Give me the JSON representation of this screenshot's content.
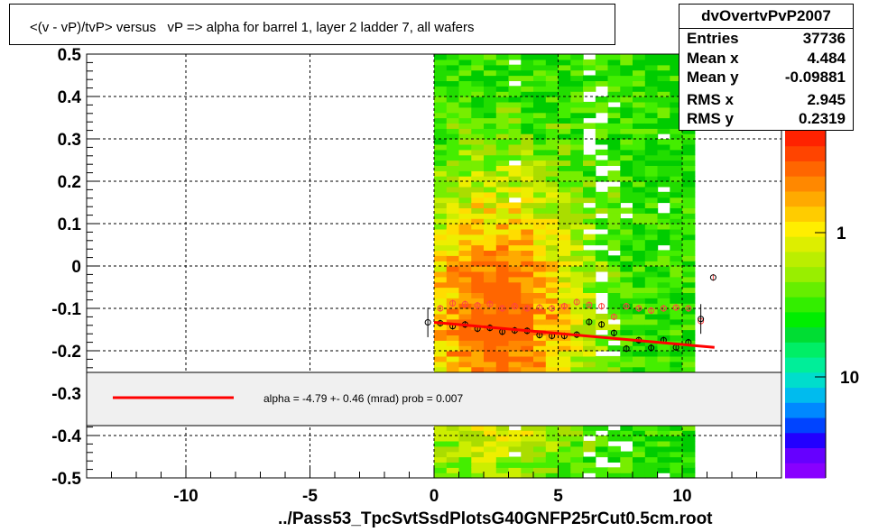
{
  "title": "<(v - vP)/tvP> versus   vP => alpha for barrel 1, layer 2 ladder 7, all wafers",
  "stats": {
    "name": "dvOvertvPvP2007",
    "rows": [
      {
        "label": "Entries",
        "value": "37736"
      },
      {
        "label": "Mean x",
        "value": "4.484"
      },
      {
        "label": "Mean y",
        "value": "-0.09881"
      },
      {
        "label": "RMS x",
        "value": "2.945"
      },
      {
        "label": "RMS y",
        "value": "0.2319"
      }
    ]
  },
  "legend": {
    "text": "alpha =   -4.79 +-  0.46 (mrad) prob = 0.007",
    "line_color": "#ff0000"
  },
  "chart_data": {
    "type": "heatmap",
    "title": "<(v - vP)/tvP> versus   vP => alpha for barrel 1, layer 2 ladder 7, all wafers",
    "xlabel": "../Pass53_TpcSvtSsdPlotsG40GNFP25rCut0.5cm.root",
    "ylabel": "",
    "xlim": [
      -14,
      14
    ],
    "ylim": [
      -0.5,
      0.5
    ],
    "x_ticks": [
      "-10",
      "-5",
      "0",
      "5",
      "10"
    ],
    "x_tick_values": [
      -10,
      -5,
      0,
      5,
      10
    ],
    "y_ticks": [
      "-0.5",
      "-0.4",
      "-0.3",
      "-0.2",
      "-0.1",
      "0",
      "0.1",
      "0.2",
      "0.3",
      "0.4",
      "0.5"
    ],
    "y_tick_values": [
      -0.5,
      -0.4,
      -0.3,
      -0.2,
      -0.1,
      0,
      0.1,
      0.2,
      0.3,
      0.4,
      0.5
    ],
    "grid": true,
    "z_scale": "log",
    "colorbar_labels": [
      "1",
      "10"
    ],
    "heatmap_x_range": [
      0,
      10.5
    ],
    "colors": {
      "low": "#22dd00",
      "mid": "#aadd00",
      "high": "#ff9900",
      "peak": "#ff5500",
      "fit": "#ff0000",
      "profile_mean": "#000000",
      "profile_alt": "#ff4444"
    },
    "series": [
      {
        "name": "",
        "marker": "open-circle-black",
        "x": [
          -0.25,
          0.25,
          0.75,
          1.25,
          1.75,
          2.25,
          2.75,
          3.25,
          3.75,
          4.25,
          4.75,
          5.25,
          5.75,
          6.25,
          6.75,
          7.25,
          7.75,
          8.25,
          8.75,
          9.25,
          9.75,
          10.25,
          10.75
        ],
        "y": [
          -0.133,
          -0.135,
          -0.142,
          -0.138,
          -0.148,
          -0.146,
          -0.155,
          -0.152,
          -0.153,
          -0.163,
          -0.165,
          -0.165,
          -0.162,
          -0.132,
          -0.138,
          -0.158,
          -0.195,
          -0.175,
          -0.193,
          -0.175,
          -0.192,
          -0.18,
          -0.125
        ]
      },
      {
        "name": "",
        "marker": "open-circle-red",
        "x": [
          0.25,
          0.75,
          1.25,
          1.75,
          2.25,
          2.75,
          3.25,
          3.75,
          4.25,
          4.75,
          5.25,
          5.75,
          6.25,
          6.75,
          7.25,
          7.75,
          8.25,
          8.75,
          9.25,
          9.75,
          10.25,
          10.75,
          11.25
        ],
        "y": [
          -0.1,
          -0.088,
          -0.09,
          -0.093,
          -0.09,
          -0.1,
          -0.095,
          -0.1,
          -0.098,
          -0.1,
          -0.095,
          -0.085,
          -0.092,
          -0.095,
          -0.12,
          -0.095,
          -0.1,
          -0.105,
          -0.1,
          -0.098,
          -0.1,
          -0.13,
          -0.027
        ]
      }
    ],
    "fit_line": {
      "x": [
        0,
        11.3
      ],
      "y": [
        -0.133,
        -0.192
      ]
    }
  }
}
